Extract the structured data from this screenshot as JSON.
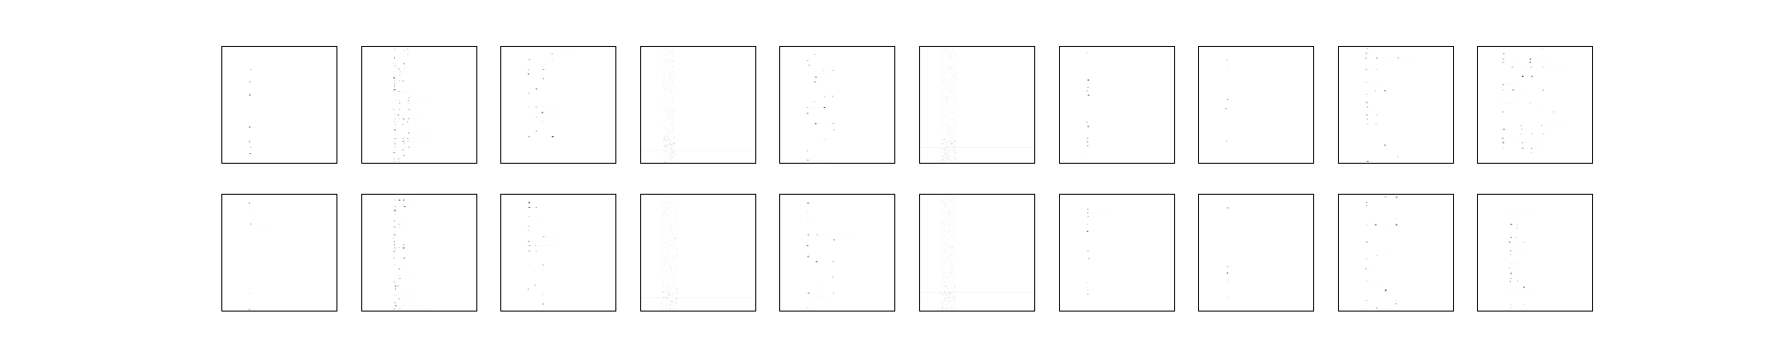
{
  "chart_data": {
    "type": "heatmap",
    "rows": 2,
    "columns": 10,
    "colormap": "gray_r",
    "background": "#ffffff",
    "axes_ticks": false,
    "title": "",
    "panels": [
      {
        "name": "",
        "pattern": "dots",
        "columns_used": [
          0.24
        ],
        "density": 0.3,
        "rows": 18,
        "noise": 0.0
      },
      {
        "name": "",
        "pattern": "dots",
        "columns_used": [
          0.28,
          0.32,
          0.36,
          0.4
        ],
        "density": 0.7,
        "rows": 40,
        "noise": 0.0
      },
      {
        "name": "",
        "pattern": "dots",
        "columns_used": [
          0.24,
          0.3,
          0.36,
          0.44
        ],
        "density": 0.35,
        "rows": 24,
        "noise": 0.0
      },
      {
        "name": "",
        "pattern": "smear",
        "columns_used": [
          0.2,
          0.24,
          0.28
        ],
        "density": 0.5,
        "rows": 60,
        "noise": 0.1
      },
      {
        "name": "",
        "pattern": "dots",
        "columns_used": [
          0.24,
          0.3,
          0.38,
          0.46
        ],
        "density": 0.45,
        "rows": 22,
        "noise": 0.0
      },
      {
        "name": "",
        "pattern": "smear",
        "columns_used": [
          0.18,
          0.22,
          0.26,
          0.3
        ],
        "density": 0.55,
        "rows": 70,
        "noise": 0.2
      },
      {
        "name": "",
        "pattern": "dots",
        "columns_used": [
          0.24
        ],
        "density": 0.35,
        "rows": 30,
        "noise": 0.0
      },
      {
        "name": "",
        "pattern": "dots",
        "columns_used": [
          0.24
        ],
        "density": 0.25,
        "rows": 14,
        "noise": 0.0
      },
      {
        "name": "",
        "pattern": "dots",
        "columns_used": [
          0.24,
          0.32,
          0.4,
          0.52,
          0.7
        ],
        "density": 0.45,
        "rows": 28,
        "noise": 0.02
      },
      {
        "name": "",
        "pattern": "dots",
        "columns_used": [
          0.22,
          0.3,
          0.38,
          0.46,
          0.56,
          0.66
        ],
        "density": 0.55,
        "rows": 26,
        "noise": 0.02
      },
      {
        "name": "",
        "pattern": "dots",
        "columns_used": [
          0.24
        ],
        "density": 0.35,
        "rows": 22,
        "noise": 0.0
      },
      {
        "name": "",
        "pattern": "dots",
        "columns_used": [
          0.28,
          0.32,
          0.36
        ],
        "density": 0.65,
        "rows": 34,
        "noise": 0.0
      },
      {
        "name": "",
        "pattern": "dots",
        "columns_used": [
          0.24,
          0.3,
          0.36
        ],
        "density": 0.45,
        "rows": 24,
        "noise": 0.0
      },
      {
        "name": "",
        "pattern": "smear",
        "columns_used": [
          0.2,
          0.24,
          0.28
        ],
        "density": 0.5,
        "rows": 60,
        "noise": 0.1
      },
      {
        "name": "",
        "pattern": "dots",
        "columns_used": [
          0.24,
          0.32,
          0.46
        ],
        "density": 0.4,
        "rows": 22,
        "noise": 0.0
      },
      {
        "name": "",
        "pattern": "smear",
        "columns_used": [
          0.18,
          0.22,
          0.26,
          0.3
        ],
        "density": 0.55,
        "rows": 70,
        "noise": 0.2
      },
      {
        "name": "",
        "pattern": "dots",
        "columns_used": [
          0.24
        ],
        "density": 0.4,
        "rows": 30,
        "noise": 0.0
      },
      {
        "name": "",
        "pattern": "dots",
        "columns_used": [
          0.24
        ],
        "density": 0.25,
        "rows": 14,
        "noise": 0.0
      },
      {
        "name": "",
        "pattern": "dots",
        "columns_used": [
          0.24,
          0.32,
          0.4,
          0.5
        ],
        "density": 0.4,
        "rows": 26,
        "noise": 0.02
      },
      {
        "name": "",
        "pattern": "dots",
        "columns_used": [
          0.28,
          0.34,
          0.4
        ],
        "density": 0.45,
        "rows": 26,
        "noise": 0.02
      }
    ]
  }
}
